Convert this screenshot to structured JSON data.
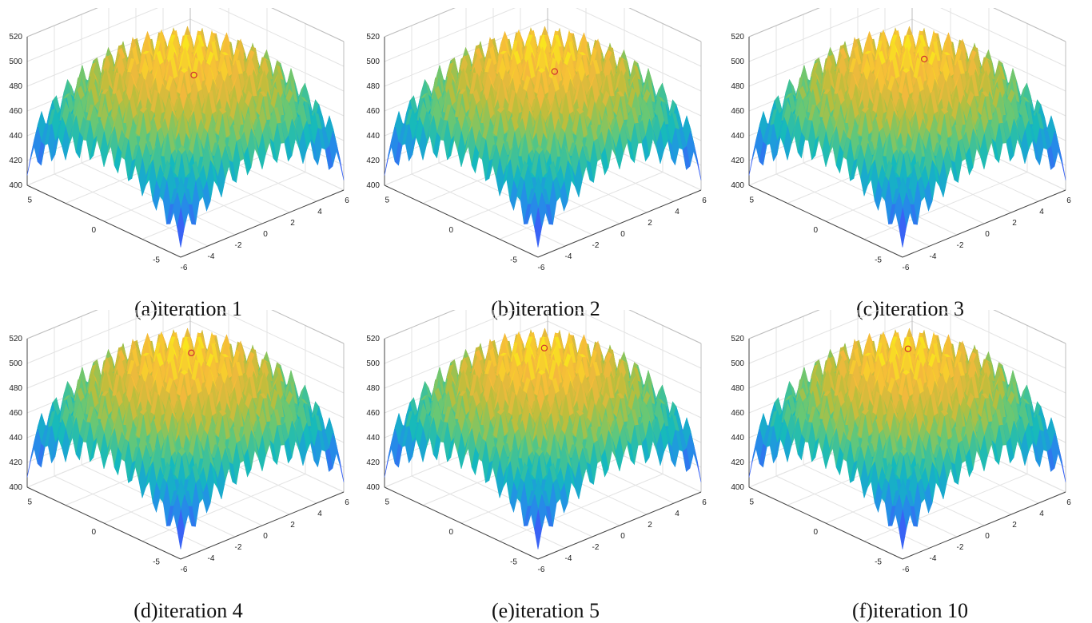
{
  "figure": {
    "captions": [
      "(a)iteration 1",
      "(b)iteration 2",
      "(c)iteration 3",
      "(d)iteration 4",
      "(e)iteration 5",
      "(f)iteration 10"
    ]
  },
  "chart_data": [
    {
      "type": "surface",
      "caption": "(a)iteration 1",
      "iteration": 1,
      "xlim": [
        -6,
        6
      ],
      "ylim": [
        -6,
        6
      ],
      "zlim": [
        400,
        520
      ],
      "x_ticks": [
        "-6",
        "-4",
        "-2",
        "0",
        "2",
        "4",
        "6"
      ],
      "y_ticks": [
        "-5",
        "0",
        "5"
      ],
      "z_ticks": [
        "400",
        "420",
        "440",
        "460",
        "480",
        "500",
        "520"
      ],
      "grid": true,
      "colormap": "parula",
      "marker": {
        "x": 2.5,
        "y": 2.0,
        "z": 470,
        "color": "#d03030"
      }
    },
    {
      "type": "surface",
      "caption": "(b)iteration 2",
      "iteration": 2,
      "xlim": [
        -6,
        6
      ],
      "ylim": [
        -6,
        6
      ],
      "zlim": [
        400,
        520
      ],
      "x_ticks": [
        "-6",
        "-4",
        "-2",
        "0",
        "2",
        "4",
        "6"
      ],
      "y_ticks": [
        "-5",
        "0",
        "5"
      ],
      "z_ticks": [
        "400",
        "420",
        "440",
        "460",
        "480",
        "500",
        "520"
      ],
      "grid": true,
      "colormap": "parula",
      "marker": {
        "x": 2.0,
        "y": 1.2,
        "z": 479,
        "color": "#d03030"
      }
    },
    {
      "type": "surface",
      "caption": "(c)iteration 3",
      "iteration": 3,
      "xlim": [
        -6,
        6
      ],
      "ylim": [
        -6,
        6
      ],
      "zlim": [
        400,
        520
      ],
      "x_ticks": [
        "-6",
        "-4",
        "-2",
        "0",
        "2",
        "4",
        "6"
      ],
      "y_ticks": [
        "-5",
        "0",
        "5"
      ],
      "z_ticks": [
        "400",
        "420",
        "440",
        "460",
        "480",
        "500",
        "520"
      ],
      "grid": true,
      "colormap": "parula",
      "marker": {
        "x": 2.0,
        "y": 0.8,
        "z": 491,
        "color": "#d03030"
      }
    },
    {
      "type": "surface",
      "caption": "(d)iteration 4",
      "iteration": 4,
      "xlim": [
        -6,
        6
      ],
      "ylim": [
        -6,
        6
      ],
      "zlim": [
        400,
        520
      ],
      "x_ticks": [
        "-6",
        "-4",
        "-2",
        "0",
        "2",
        "4",
        "6"
      ],
      "y_ticks": [
        "-5",
        "0",
        "5"
      ],
      "z_ticks": [
        "400",
        "420",
        "440",
        "460",
        "480",
        "500",
        "520"
      ],
      "grid": true,
      "colormap": "parula",
      "marker": {
        "x": 1.0,
        "y": 0.6,
        "z": 503,
        "color": "#d03030"
      }
    },
    {
      "type": "surface",
      "caption": "(e)iteration 5",
      "iteration": 5,
      "xlim": [
        -6,
        6
      ],
      "ylim": [
        -6,
        6
      ],
      "zlim": [
        400,
        520
      ],
      "x_ticks": [
        "-6",
        "-4",
        "-2",
        "0",
        "2",
        "4",
        "6"
      ],
      "y_ticks": [
        "-5",
        "0",
        "5"
      ],
      "z_ticks": [
        "400",
        "420",
        "440",
        "460",
        "480",
        "500",
        "520"
      ],
      "grid": true,
      "colormap": "parula",
      "marker": {
        "x": 0.3,
        "y": 0.2,
        "z": 512,
        "color": "#d03030"
      }
    },
    {
      "type": "surface",
      "caption": "(f)iteration 10",
      "iteration": 10,
      "xlim": [
        -6,
        6
      ],
      "ylim": [
        -6,
        6
      ],
      "zlim": [
        400,
        520
      ],
      "x_ticks": [
        "-6",
        "-4",
        "-2",
        "0",
        "2",
        "4",
        "6"
      ],
      "y_ticks": [
        "-5",
        "0",
        "5"
      ],
      "z_ticks": [
        "400",
        "420",
        "440",
        "460",
        "480",
        "500",
        "520"
      ],
      "grid": true,
      "colormap": "parula",
      "marker": {
        "x": 0.1,
        "y": 0.05,
        "z": 513,
        "color": "#d03030"
      }
    }
  ]
}
